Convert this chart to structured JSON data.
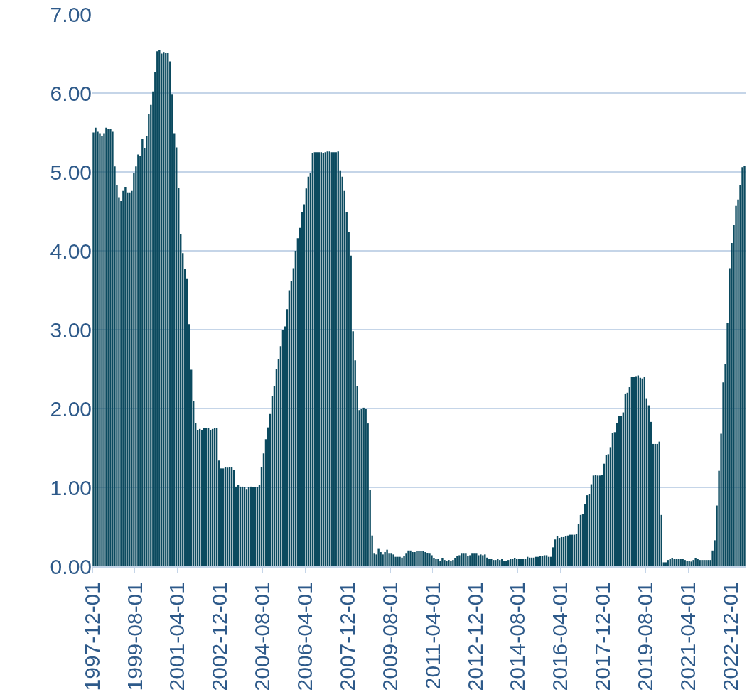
{
  "chart_data": {
    "type": "bar",
    "color": "#0b4a5f",
    "grid": "y",
    "categories": [
      "1997-12-01",
      null,
      null,
      null,
      null,
      null,
      null,
      null,
      null,
      null,
      null,
      null,
      null,
      null,
      null,
      null,
      null,
      null,
      null,
      null,
      "1999-08-01",
      null,
      null,
      null,
      null,
      null,
      null,
      null,
      null,
      null,
      null,
      null,
      null,
      null,
      null,
      null,
      null,
      null,
      null,
      null,
      "2001-04-01",
      null,
      null,
      null,
      null,
      null,
      null,
      null,
      null,
      null,
      null,
      null,
      null,
      null,
      null,
      null,
      null,
      null,
      null,
      null,
      "2002-12-01",
      null,
      null,
      null,
      null,
      null,
      null,
      null,
      null,
      null,
      null,
      null,
      null,
      null,
      null,
      null,
      null,
      null,
      null,
      null,
      "2004-08-01",
      null,
      null,
      null,
      null,
      null,
      null,
      null,
      null,
      null,
      null,
      null,
      null,
      null,
      null,
      null,
      null,
      null,
      null,
      null,
      "2006-04-01",
      null,
      null,
      null,
      null,
      null,
      null,
      null,
      null,
      null,
      null,
      null,
      null,
      null,
      null,
      null,
      null,
      null,
      null,
      null,
      "2007-12-01",
      null,
      null,
      null,
      null,
      null,
      null,
      null,
      null,
      null,
      null,
      null,
      null,
      null,
      null,
      null,
      null,
      null,
      null,
      null,
      "2009-08-01",
      null,
      null,
      null,
      null,
      null,
      null,
      null,
      null,
      null,
      null,
      null,
      null,
      null,
      null,
      null,
      null,
      null,
      null,
      null,
      "2011-04-01",
      null,
      null,
      null,
      null,
      null,
      null,
      null,
      null,
      null,
      null,
      null,
      null,
      null,
      null,
      null,
      null,
      null,
      null,
      null,
      "2012-12-01",
      null,
      null,
      null,
      null,
      null,
      null,
      null,
      null,
      null,
      null,
      null,
      null,
      null,
      null,
      null,
      null,
      null,
      null,
      null,
      "2014-08-01",
      null,
      null,
      null,
      null,
      null,
      null,
      null,
      null,
      null,
      null,
      null,
      null,
      null,
      null,
      null,
      null,
      null,
      null,
      null,
      "2016-04-01",
      null,
      null,
      null,
      null,
      null,
      null,
      null,
      null,
      null,
      null,
      null,
      null,
      null,
      null,
      null,
      null,
      null,
      null,
      null,
      "2017-12-01",
      null,
      null,
      null,
      null,
      null,
      null,
      null,
      null,
      null,
      null,
      null,
      null,
      null,
      null,
      null,
      null,
      null,
      null,
      null,
      "2019-08-01",
      null,
      null,
      null,
      null,
      null,
      null,
      null,
      null,
      null,
      null,
      null,
      null,
      null,
      null,
      null,
      null,
      null,
      null,
      null,
      "2021-04-01",
      null,
      null,
      null,
      null,
      null,
      null,
      null,
      null,
      null,
      null,
      null,
      null,
      null,
      null,
      null,
      null,
      null,
      null,
      null,
      "2022-12-01",
      null,
      null,
      null,
      null,
      null,
      null
    ],
    "values": [
      5.5,
      5.56,
      5.51,
      5.49,
      5.45,
      5.49,
      5.56,
      5.54,
      5.55,
      5.51,
      5.07,
      4.83,
      4.68,
      4.63,
      4.76,
      4.81,
      4.74,
      4.74,
      4.76,
      4.99,
      5.07,
      5.22,
      5.2,
      5.42,
      5.3,
      5.45,
      5.73,
      5.85,
      6.02,
      6.27,
      6.53,
      6.54,
      6.5,
      6.52,
      6.51,
      6.51,
      6.4,
      5.98,
      5.49,
      5.31,
      4.8,
      4.21,
      3.97,
      3.77,
      3.65,
      3.07,
      2.49,
      2.09,
      1.82,
      1.73,
      1.74,
      1.73,
      1.75,
      1.75,
      1.75,
      1.73,
      1.74,
      1.75,
      1.75,
      1.34,
      1.24,
      1.24,
      1.26,
      1.25,
      1.26,
      1.26,
      1.22,
      1.01,
      1.03,
      1.01,
      1.01,
      1.0,
      0.98,
      1.0,
      1.01,
      1.0,
      1.0,
      1.0,
      1.03,
      1.26,
      1.43,
      1.61,
      1.76,
      1.93,
      2.16,
      2.28,
      2.5,
      2.63,
      2.79,
      3.0,
      3.04,
      3.26,
      3.5,
      3.62,
      3.78,
      4.0,
      4.16,
      4.29,
      4.49,
      4.59,
      4.79,
      4.94,
      4.99,
      5.24,
      5.25,
      5.25,
      5.25,
      5.25,
      5.24,
      5.25,
      5.26,
      5.26,
      5.25,
      5.25,
      5.25,
      5.26,
      5.02,
      4.94,
      4.76,
      4.49,
      4.24,
      3.94,
      2.98,
      2.61,
      2.28,
      1.98,
      2.0,
      2.01,
      2.0,
      1.81,
      0.97,
      0.39,
      0.16,
      0.15,
      0.22,
      0.18,
      0.15,
      0.18,
      0.21,
      0.16,
      0.16,
      0.15,
      0.12,
      0.12,
      0.12,
      0.11,
      0.13,
      0.16,
      0.2,
      0.2,
      0.18,
      0.18,
      0.19,
      0.19,
      0.19,
      0.19,
      0.18,
      0.17,
      0.16,
      0.14,
      0.1,
      0.09,
      0.09,
      0.07,
      0.1,
      0.08,
      0.07,
      0.08,
      0.07,
      0.08,
      0.1,
      0.13,
      0.14,
      0.16,
      0.16,
      0.16,
      0.13,
      0.14,
      0.16,
      0.16,
      0.16,
      0.14,
      0.15,
      0.14,
      0.15,
      0.11,
      0.09,
      0.09,
      0.08,
      0.08,
      0.09,
      0.08,
      0.09,
      0.07,
      0.07,
      0.08,
      0.09,
      0.09,
      0.1,
      0.09,
      0.09,
      0.09,
      0.09,
      0.09,
      0.12,
      0.11,
      0.11,
      0.11,
      0.12,
      0.12,
      0.13,
      0.13,
      0.14,
      0.14,
      0.12,
      0.12,
      0.24,
      0.34,
      0.38,
      0.36,
      0.37,
      0.37,
      0.38,
      0.39,
      0.4,
      0.4,
      0.4,
      0.41,
      0.54,
      0.65,
      0.66,
      0.79,
      0.9,
      0.91,
      1.04,
      1.15,
      1.16,
      1.15,
      1.15,
      1.16,
      1.3,
      1.41,
      1.42,
      1.51,
      1.69,
      1.7,
      1.82,
      1.91,
      1.91,
      1.95,
      2.19,
      2.2,
      2.27,
      2.4,
      2.4,
      2.41,
      2.42,
      2.39,
      2.38,
      2.4,
      2.13,
      2.04,
      1.83,
      1.55,
      1.55,
      1.55,
      1.58,
      0.65,
      0.05,
      0.05,
      0.08,
      0.09,
      0.1,
      0.09,
      0.09,
      0.09,
      0.09,
      0.09,
      0.08,
      0.07,
      0.07,
      0.06,
      0.08,
      0.1,
      0.09,
      0.08,
      0.08,
      0.08,
      0.08,
      0.08,
      0.08,
      0.2,
      0.33,
      0.77,
      1.21,
      1.68,
      2.33,
      2.56,
      3.08,
      3.78,
      4.1,
      4.33,
      4.57,
      4.65,
      4.83,
      5.06,
      5.08
    ],
    "ylim": [
      0,
      7
    ],
    "yticks": [
      {
        "value": 0,
        "label": "0.00"
      },
      {
        "value": 1,
        "label": "1.00"
      },
      {
        "value": 2,
        "label": "2.00"
      },
      {
        "value": 3,
        "label": "3.00"
      },
      {
        "value": 4,
        "label": "4.00"
      },
      {
        "value": 5,
        "label": "5.00"
      },
      {
        "value": 6,
        "label": "6.00"
      },
      {
        "value": 7,
        "label": "7.00"
      }
    ]
  }
}
